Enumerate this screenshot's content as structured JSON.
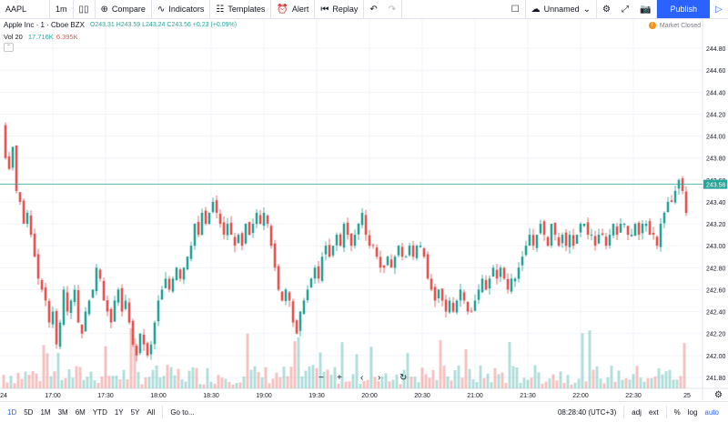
{
  "toolbar": {
    "symbol": "AAPL",
    "interval": "1m",
    "compare": "Compare",
    "indicators": "Indicators",
    "templates": "Templates",
    "alert": "Alert",
    "replay": "Replay",
    "layout_name": "Unnamed",
    "publish": "Publish"
  },
  "legend": {
    "title": "Apple Inc · 1 · Cboe BZX",
    "ohlc": "O243.31  H243.59  L243.24  C243.56  +0.23 (+0.09%)",
    "vol_label": "Vol  20",
    "vol_value1": "17.716K",
    "vol_value2": "6.395K"
  },
  "market_status": "Market Closed",
  "current_price_label": "243.56",
  "price_axis": [
    "244.80",
    "244.60",
    "244.40",
    "244.20",
    "244.00",
    "243.80",
    "243.60",
    "243.40",
    "243.20",
    "243.00",
    "242.80",
    "242.60",
    "242.40",
    "242.20",
    "242.00",
    "241.80"
  ],
  "time_axis": [
    "24",
    "17:00",
    "17:30",
    "18:00",
    "18:30",
    "19:00",
    "19:30",
    "20:00",
    "20:30",
    "21:00",
    "21:30",
    "22:00",
    "22:30",
    "25"
  ],
  "bottom": {
    "ranges": [
      "1D",
      "5D",
      "1M",
      "3M",
      "6M",
      "YTD",
      "1Y",
      "5Y",
      "All"
    ],
    "goto": "Go to...",
    "clock": "08:28:40 (UTC+3)",
    "adj": "adj",
    "ext": "ext",
    "pct": "%",
    "log": "log",
    "auto": "auto"
  },
  "colors": {
    "up": "#26a69a",
    "down": "#ef5350",
    "accent": "#2962ff"
  },
  "chart_data": {
    "type": "line",
    "x_ticks": [
      "17:00",
      "17:30",
      "18:00",
      "18:30",
      "19:00",
      "19:30",
      "20:00",
      "20:30",
      "21:00",
      "21:30",
      "22:00",
      "22:30"
    ],
    "ylim": [
      241.7,
      244.9
    ],
    "path": [
      [
        0,
        244.1
      ],
      [
        4,
        243.8
      ],
      [
        8,
        243.7
      ],
      [
        12,
        243.9
      ],
      [
        16,
        243.5
      ],
      [
        20,
        243.4
      ],
      [
        24,
        243.2
      ],
      [
        28,
        243.3
      ],
      [
        32,
        243.1
      ],
      [
        36,
        242.9
      ],
      [
        40,
        242.7
      ],
      [
        44,
        242.6
      ],
      [
        48,
        242.5
      ],
      [
        52,
        242.3
      ],
      [
        56,
        242.4
      ],
      [
        60,
        242.1
      ],
      [
        64,
        242.3
      ],
      [
        68,
        242.6
      ],
      [
        72,
        242.4
      ],
      [
        76,
        242.5
      ],
      [
        80,
        242.6
      ],
      [
        84,
        242.3
      ],
      [
        88,
        242.2
      ],
      [
        92,
        242.4
      ],
      [
        96,
        242.5
      ],
      [
        100,
        242.6
      ],
      [
        104,
        242.8
      ],
      [
        108,
        242.7
      ],
      [
        112,
        242.5
      ],
      [
        116,
        242.4
      ],
      [
        120,
        242.3
      ],
      [
        124,
        242.5
      ],
      [
        128,
        242.6
      ],
      [
        132,
        242.4
      ],
      [
        136,
        242.5
      ],
      [
        140,
        242.3
      ],
      [
        144,
        242.1
      ],
      [
        148,
        242.0
      ],
      [
        152,
        242.2
      ],
      [
        156,
        242.1
      ],
      [
        160,
        242.0
      ],
      [
        164,
        242.1
      ],
      [
        168,
        242.3
      ],
      [
        172,
        242.5
      ],
      [
        176,
        242.6
      ],
      [
        180,
        242.7
      ],
      [
        184,
        242.6
      ],
      [
        188,
        242.7
      ],
      [
        192,
        242.8
      ],
      [
        196,
        242.7
      ],
      [
        200,
        242.8
      ],
      [
        204,
        242.9
      ],
      [
        208,
        243.0
      ],
      [
        212,
        243.2
      ],
      [
        216,
        243.1
      ],
      [
        220,
        243.3
      ],
      [
        224,
        243.2
      ],
      [
        228,
        243.3
      ],
      [
        232,
        243.4
      ],
      [
        236,
        243.3
      ],
      [
        240,
        243.2
      ],
      [
        244,
        243.1
      ],
      [
        248,
        243.2
      ],
      [
        252,
        243.1
      ],
      [
        256,
        243.0
      ],
      [
        260,
        243.1
      ],
      [
        264,
        243.0
      ],
      [
        268,
        243.2
      ],
      [
        272,
        243.1
      ],
      [
        276,
        243.2
      ],
      [
        280,
        243.3
      ],
      [
        284,
        243.2
      ],
      [
        288,
        243.3
      ],
      [
        292,
        243.2
      ],
      [
        296,
        243.0
      ],
      [
        300,
        242.8
      ],
      [
        304,
        242.6
      ],
      [
        308,
        242.5
      ],
      [
        312,
        242.6
      ],
      [
        316,
        242.5
      ],
      [
        320,
        242.3
      ],
      [
        324,
        242.2
      ],
      [
        328,
        242.4
      ],
      [
        332,
        242.5
      ],
      [
        336,
        242.6
      ],
      [
        340,
        242.7
      ],
      [
        344,
        242.8
      ],
      [
        348,
        242.7
      ],
      [
        352,
        242.9
      ],
      [
        356,
        243.0
      ],
      [
        360,
        242.9
      ],
      [
        364,
        243.0
      ],
      [
        368,
        243.1
      ],
      [
        372,
        243.0
      ],
      [
        376,
        243.2
      ],
      [
        380,
        243.1
      ],
      [
        384,
        243.0
      ],
      [
        388,
        243.1
      ],
      [
        392,
        243.2
      ],
      [
        396,
        243.3
      ],
      [
        400,
        243.1
      ],
      [
        404,
        243.0
      ],
      [
        408,
        243.0
      ],
      [
        412,
        242.9
      ],
      [
        416,
        242.8
      ],
      [
        420,
        242.8
      ],
      [
        424,
        242.9
      ],
      [
        428,
        242.8
      ],
      [
        432,
        242.9
      ],
      [
        436,
        243.0
      ],
      [
        440,
        242.9
      ],
      [
        444,
        242.9
      ],
      [
        448,
        243.0
      ],
      [
        452,
        242.9
      ],
      [
        456,
        243.0
      ],
      [
        460,
        243.0
      ],
      [
        464,
        242.9
      ],
      [
        468,
        242.7
      ],
      [
        472,
        242.6
      ],
      [
        476,
        242.5
      ],
      [
        480,
        242.6
      ],
      [
        484,
        242.5
      ],
      [
        488,
        242.4
      ],
      [
        492,
        242.5
      ],
      [
        496,
        242.4
      ],
      [
        500,
        242.5
      ],
      [
        504,
        242.6
      ],
      [
        508,
        242.5
      ],
      [
        512,
        242.4
      ],
      [
        516,
        242.4
      ],
      [
        520,
        242.5
      ],
      [
        524,
        242.6
      ],
      [
        528,
        242.7
      ],
      [
        532,
        242.6
      ],
      [
        536,
        242.7
      ],
      [
        540,
        242.8
      ],
      [
        544,
        242.7
      ],
      [
        548,
        242.8
      ],
      [
        552,
        242.7
      ],
      [
        556,
        242.6
      ],
      [
        560,
        242.7
      ],
      [
        564,
        242.7
      ],
      [
        568,
        242.8
      ],
      [
        572,
        242.9
      ],
      [
        576,
        243.0
      ],
      [
        580,
        243.1
      ],
      [
        584,
        243.0
      ],
      [
        588,
        243.1
      ],
      [
        592,
        243.2
      ],
      [
        596,
        243.1
      ],
      [
        600,
        243.0
      ],
      [
        604,
        243.2
      ],
      [
        608,
        243.1
      ],
      [
        612,
        243.0
      ],
      [
        616,
        243.1
      ],
      [
        620,
        243.0
      ],
      [
        624,
        243.1
      ],
      [
        628,
        243.0
      ],
      [
        632,
        243.1
      ],
      [
        636,
        243.2
      ],
      [
        640,
        243.2
      ],
      [
        644,
        243.1
      ],
      [
        648,
        243.1
      ],
      [
        652,
        243.0
      ],
      [
        656,
        243.1
      ],
      [
        660,
        243.1
      ],
      [
        664,
        243.0
      ],
      [
        668,
        243.1
      ],
      [
        672,
        243.2
      ],
      [
        676,
        243.1
      ],
      [
        680,
        243.2
      ],
      [
        684,
        243.2
      ],
      [
        688,
        243.1
      ],
      [
        692,
        243.1
      ],
      [
        696,
        243.2
      ],
      [
        700,
        243.1
      ],
      [
        704,
        243.2
      ],
      [
        708,
        243.2
      ],
      [
        712,
        243.1
      ],
      [
        716,
        243.1
      ],
      [
        720,
        243.0
      ],
      [
        724,
        243.2
      ],
      [
        728,
        243.3
      ],
      [
        732,
        243.4
      ],
      [
        736,
        243.4
      ],
      [
        740,
        243.5
      ],
      [
        744,
        243.6
      ],
      [
        748,
        243.5
      ],
      [
        752,
        243.3
      ]
    ],
    "current_price": 243.56
  }
}
